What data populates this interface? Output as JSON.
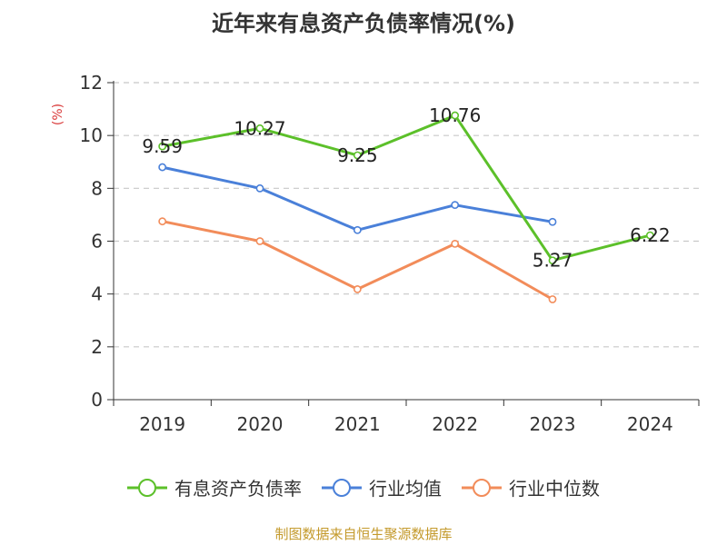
{
  "chart_data": {
    "type": "line",
    "title": "近年来有息资产负债率情况(%)",
    "ylabel": "(%)",
    "categories": [
      "2019",
      "2020",
      "2021",
      "2022",
      "2023",
      "2024"
    ],
    "ylim": [
      0,
      12
    ],
    "yticks": [
      "0",
      "2",
      "4",
      "6",
      "8",
      "10",
      "12"
    ],
    "grid": true,
    "legend_position": "bottom",
    "series": [
      {
        "name": "有息资产负债率",
        "color": "#5cc02a",
        "values": [
          9.59,
          10.27,
          9.25,
          10.76,
          5.27,
          6.22
        ],
        "labels": [
          "9.59",
          "10.27",
          "9.25",
          "10.76",
          "5.27",
          "6.22"
        ]
      },
      {
        "name": "行业均值",
        "color": "#4a80d9",
        "values": [
          8.8,
          8.0,
          6.42,
          7.37,
          6.73,
          null
        ]
      },
      {
        "name": "行业中位数",
        "color": "#f28c5a",
        "values": [
          6.75,
          6.0,
          4.18,
          5.9,
          3.8,
          null
        ]
      }
    ]
  },
  "footer": {
    "source": "制图数据来自恒生聚源数据库"
  }
}
